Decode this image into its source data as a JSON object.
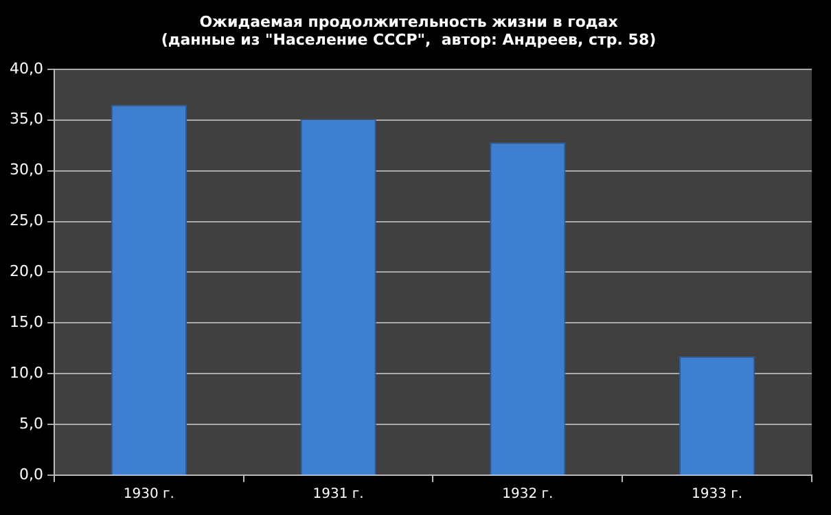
{
  "chart_data": {
    "type": "bar",
    "title": [
      "Ожидаемая продолжительность жизни в годах",
      "(данные из \"Население СССР\",  автор: Андреев, стр. 58)"
    ],
    "categories": [
      "1930 г.",
      "1931 г.",
      "1932 г.",
      "1933 г."
    ],
    "values": [
      36.5,
      35.1,
      32.8,
      11.7
    ],
    "color": "#3f7fd0",
    "ylim": [
      0,
      40
    ],
    "yticks": [
      {
        "value": 0,
        "label": "0,0"
      },
      {
        "value": 5,
        "label": "5,0"
      },
      {
        "value": 10,
        "label": "10,0"
      },
      {
        "value": 15,
        "label": "15,0"
      },
      {
        "value": 20,
        "label": "20,0"
      },
      {
        "value": 25,
        "label": "25,0"
      },
      {
        "value": 30,
        "label": "30,0"
      },
      {
        "value": 35,
        "label": "35,0"
      },
      {
        "value": 40,
        "label": "40,0"
      }
    ],
    "grid": "y",
    "legend": false
  }
}
